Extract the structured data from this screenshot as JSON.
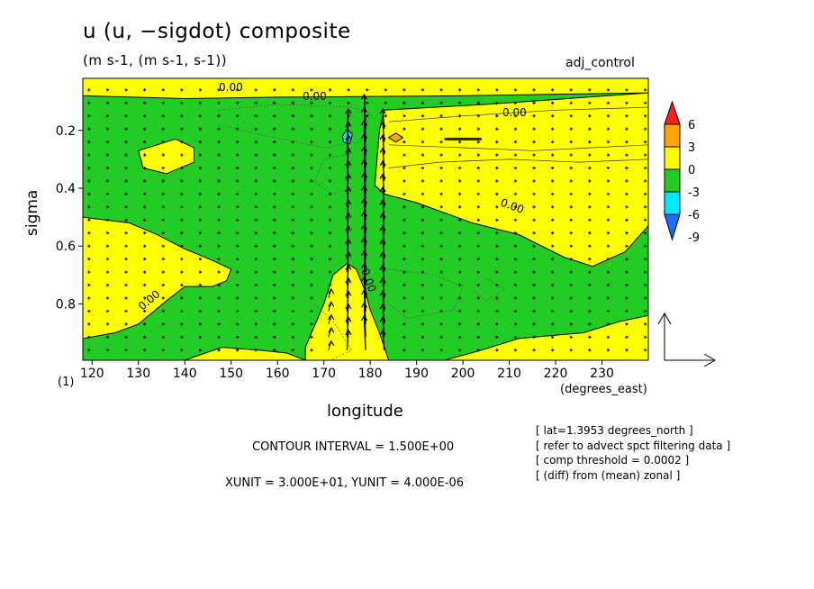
{
  "chart_data": {
    "type": "heatmap",
    "title": "u (u, −sigdot) composite",
    "subtitle": "(m s-1, (m s-1, s-1))",
    "run_label": "adj_control",
    "xlabel": "longitude",
    "x_units": "(degrees_east)",
    "ylabel": "sigma",
    "y_level_marker": "(1)",
    "xlim": [
      118,
      240
    ],
    "ylim": [
      0.02,
      0.995
    ],
    "y_inverted": true,
    "x_ticks": [
      120,
      130,
      140,
      150,
      160,
      170,
      180,
      190,
      200,
      210,
      220,
      230
    ],
    "y_ticks": [
      0.2,
      0.4,
      0.6,
      0.8
    ],
    "colorbar": {
      "levels": [
        -9,
        -6,
        -3,
        0,
        3,
        6
      ],
      "colors": [
        "#1e6cff",
        "#00e8ff",
        "#22cc22",
        "#ffff00",
        "#ffa500",
        "#ff1e1e"
      ]
    },
    "contour_label": "0.00",
    "contour_interval": "CONTOUR INTERVAL = 1.500E+00",
    "vector_units": "XUNIT = 3.000E+01, YUNIT = 4.000E-06",
    "notes": [
      "[ lat=1.3953 degrees_north ]",
      "[ refer to advect spct filtering data ]",
      "[ comp threshold = 0.0002 ]",
      "[ (diff) from (mean) zonal ]"
    ],
    "positive_regions": [
      {
        "name": "top-band",
        "points": [
          [
            118,
            0.02
          ],
          [
            240,
            0.02
          ],
          [
            240,
            0.07
          ],
          [
            200,
            0.08
          ],
          [
            160,
            0.085
          ],
          [
            140,
            0.09
          ],
          [
            118,
            0.08
          ]
        ]
      },
      {
        "name": "east-upper",
        "points": [
          [
            183,
            0.13
          ],
          [
            205,
            0.11
          ],
          [
            240,
            0.07
          ],
          [
            240,
            0.53
          ],
          [
            235,
            0.62
          ],
          [
            228,
            0.67
          ],
          [
            222,
            0.64
          ],
          [
            212,
            0.56
          ],
          [
            202,
            0.52
          ],
          [
            190,
            0.45
          ],
          [
            183,
            0.42
          ],
          [
            181,
            0.39
          ],
          [
            182,
            0.2
          ]
        ]
      },
      {
        "name": "west-small",
        "points": [
          [
            130,
            0.27
          ],
          [
            134,
            0.25
          ],
          [
            138,
            0.23
          ],
          [
            142,
            0.26
          ],
          [
            142,
            0.31
          ],
          [
            136,
            0.35
          ],
          [
            131,
            0.33
          ]
        ]
      },
      {
        "name": "west-middle",
        "points": [
          [
            118,
            0.5
          ],
          [
            128,
            0.52
          ],
          [
            134,
            0.56
          ],
          [
            140,
            0.61
          ],
          [
            146,
            0.65
          ],
          [
            150,
            0.68
          ],
          [
            149,
            0.72
          ],
          [
            146,
            0.74
          ],
          [
            140,
            0.74
          ],
          [
            136,
            0.79
          ],
          [
            130,
            0.87
          ],
          [
            125,
            0.9
          ],
          [
            118,
            0.92
          ]
        ]
      },
      {
        "name": "west-bottom",
        "points": [
          [
            140,
            0.995
          ],
          [
            148,
            0.95
          ],
          [
            156,
            0.96
          ],
          [
            162,
            0.97
          ],
          [
            166,
            0.995
          ]
        ]
      },
      {
        "name": "center-column",
        "points": [
          [
            166,
            0.95
          ],
          [
            170,
            0.8
          ],
          [
            172,
            0.7
          ],
          [
            175,
            0.66
          ],
          [
            177,
            0.68
          ],
          [
            179,
            0.76
          ],
          [
            180,
            0.82
          ],
          [
            182,
            0.9
          ],
          [
            184,
            0.995
          ],
          [
            166,
            0.995
          ]
        ]
      },
      {
        "name": "east-bottom",
        "points": [
          [
            196,
            0.995
          ],
          [
            204,
            0.96
          ],
          [
            212,
            0.92
          ],
          [
            226,
            0.9
          ],
          [
            234,
            0.86
          ],
          [
            240,
            0.84
          ],
          [
            240,
            0.995
          ]
        ]
      }
    ],
    "negative_spots": [
      {
        "name": "cyan-spot",
        "x": 175,
        "y": 0.225,
        "level": -6
      }
    ],
    "orange_spots": [
      {
        "name": "orange-spot",
        "x": 185.5,
        "y": 0.225,
        "level": 3
      }
    ],
    "vector_reference": {
      "note": "reference arrow"
    }
  }
}
